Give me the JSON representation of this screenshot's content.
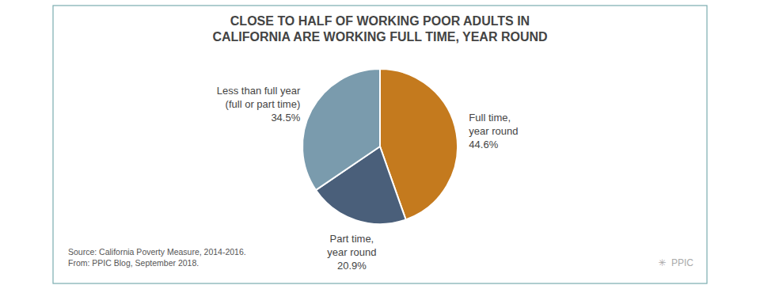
{
  "chart_data": {
    "type": "pie",
    "title": "CLOSE TO HALF OF WORKING POOR ADULTS IN\nCALIFORNIA ARE WORKING FULL TIME, YEAR ROUND",
    "categories": [
      "Full time,\nyear round",
      "Part time,\nyear round",
      "Less than full year\n(full or part time)"
    ],
    "values": [
      44.6,
      20.9,
      34.5
    ],
    "value_labels": [
      "44.6%",
      "20.9%",
      "34.5%"
    ],
    "data_labels": true,
    "colors": [
      "#C47A1E",
      "#4A5F7A",
      "#7A9BAD"
    ],
    "annotations": [
      "Source: California Poverty Measure, 2014-2016.\nFrom: PPIC Blog, September 2018.",
      "✳  PPIC"
    ]
  }
}
